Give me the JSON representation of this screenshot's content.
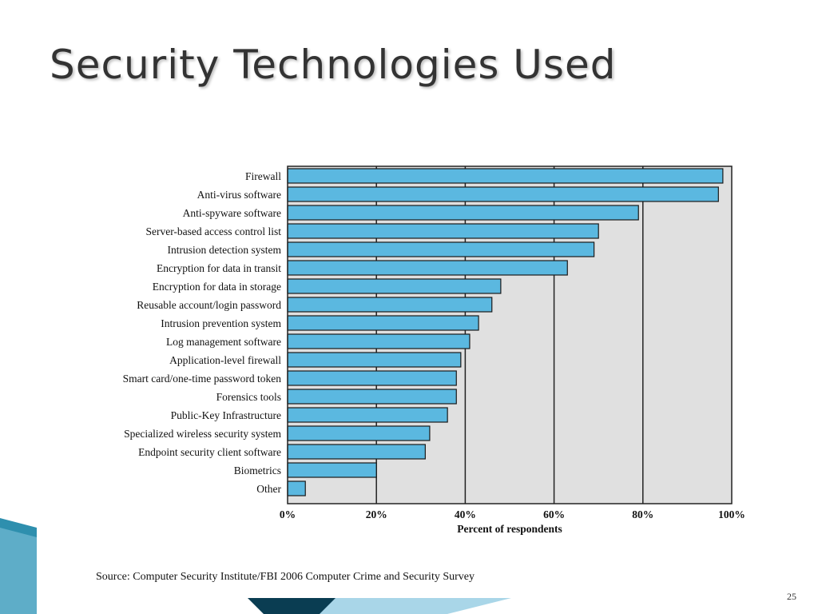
{
  "slide": {
    "title": "Security Technologies Used",
    "source": "Source: Computer Security Institute/FBI 2006 Computer Crime and Security Survey",
    "page_number": "25"
  },
  "colors": {
    "bar": "#5bb8e0",
    "plot_bg": "#e0e0e0",
    "title_text": "#333333",
    "decor_dark": "#0a3d52",
    "decor_teal": "#2e8fae",
    "decor_light": "#a9d6e8"
  },
  "chart_data": {
    "type": "bar",
    "orientation": "horizontal",
    "categories": [
      "Firewall",
      "Anti-virus software",
      "Anti-spyware software",
      "Server-based access control list",
      "Intrusion detection system",
      "Encryption for data in transit",
      "Encryption for data in storage",
      "Reusable account/login password",
      "Intrusion prevention system",
      "Log management software",
      "Application-level firewall",
      "Smart card/one-time password token",
      "Forensics tools",
      "Public-Key Infrastructure",
      "Specialized wireless security system",
      "Endpoint security client software",
      "Biometrics",
      "Other"
    ],
    "values": [
      98,
      97,
      79,
      70,
      69,
      63,
      48,
      46,
      43,
      41,
      39,
      38,
      38,
      36,
      32,
      31,
      20,
      4
    ],
    "xlabel": "Percent of respondents",
    "ylabel": "",
    "xlim": [
      0,
      100
    ],
    "xticks": [
      0,
      20,
      40,
      60,
      80,
      100
    ],
    "xtick_labels": [
      "0%",
      "20%",
      "40%",
      "60%",
      "80%",
      "100%"
    ],
    "grid": "vertical",
    "legend": "none"
  }
}
